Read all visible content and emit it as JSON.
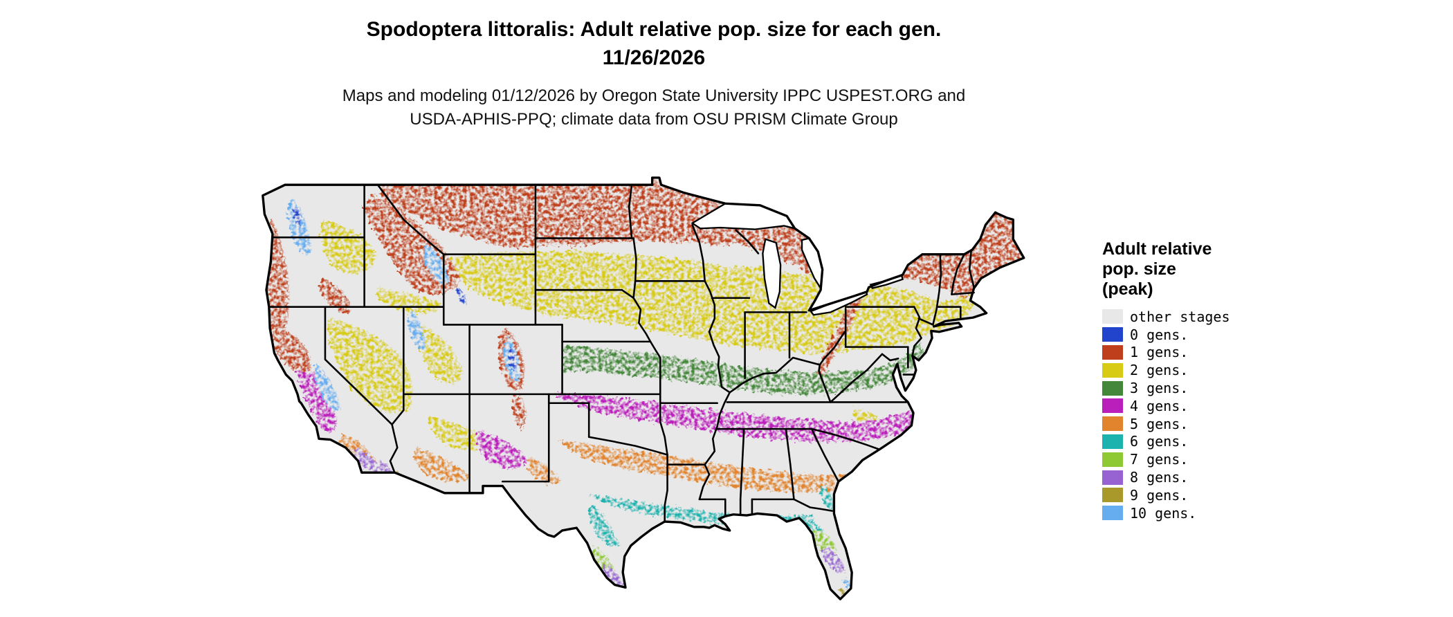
{
  "figure": {
    "title_line1": "Spodoptera littoralis: Adult relative pop. size for each gen.",
    "title_line2": "11/26/2026",
    "subtitle_line1": "Maps and modeling 01/12/2026 by Oregon State University IPPC USPEST.ORG and",
    "subtitle_line2": "USDA-APHIS-PPQ; climate data from OSU PRISM Climate Group"
  },
  "map": {
    "region": "Continental United States",
    "border_color": "#000000",
    "water_color": "#ffffff"
  },
  "legend": {
    "title_lines": [
      "Adult relative",
      "pop. size",
      "(peak)"
    ],
    "items": [
      {
        "key": "other",
        "label": "other stages",
        "color": "#e8e8e8"
      },
      {
        "key": "g0",
        "label": "0 gens.",
        "color": "#2244cc"
      },
      {
        "key": "g1",
        "label": "1 gens.",
        "color": "#bf3f1d"
      },
      {
        "key": "g2",
        "label": "2 gens.",
        "color": "#d8cb15"
      },
      {
        "key": "g3",
        "label": "3 gens.",
        "color": "#44873a"
      },
      {
        "key": "g4",
        "label": "4 gens.",
        "color": "#bb1fbb"
      },
      {
        "key": "g5",
        "label": "5 gens.",
        "color": "#e2842e"
      },
      {
        "key": "g6",
        "label": "6 gens.",
        "color": "#1cb2ae"
      },
      {
        "key": "g7",
        "label": "7 gens.",
        "color": "#8ec832"
      },
      {
        "key": "g8",
        "label": "8 gens.",
        "color": "#9763d2"
      },
      {
        "key": "g9",
        "label": "9 gens.",
        "color": "#a8992a"
      },
      {
        "key": "g10",
        "label": "10 gens.",
        "color": "#66adf0"
      }
    ]
  }
}
